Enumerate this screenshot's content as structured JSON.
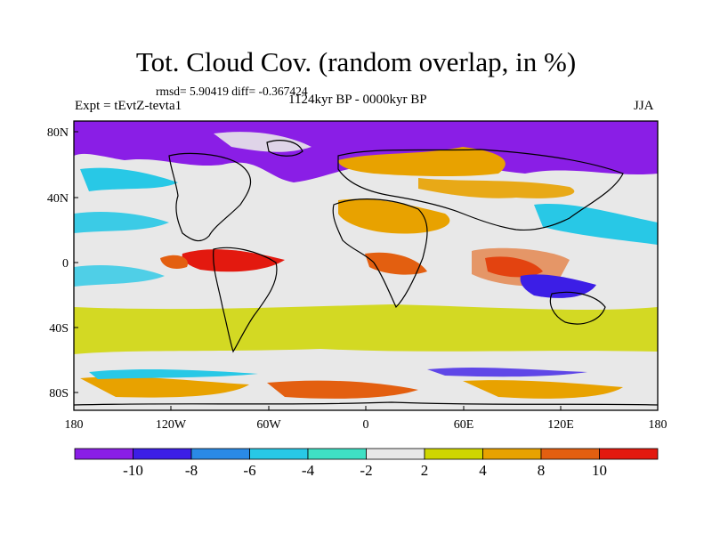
{
  "header": {
    "title": "Tot. Cloud Cov. (random overlap, in %)",
    "stats": "rmsd= 5.90419 diff= -0.367424",
    "experiment": "Expt = tEvtZ-tevta1",
    "period": "1124kyr BP - 0000kyr BP",
    "season": "JJA"
  },
  "axes": {
    "lat_ticks": [
      "80N",
      "40N",
      "0",
      "40S",
      "80S"
    ],
    "lon_ticks": [
      "180",
      "120W",
      "60W",
      "0",
      "60E",
      "120E",
      "180"
    ]
  },
  "colorbar": {
    "labels": [
      "-10",
      "-8",
      "-6",
      "-4",
      "-2",
      "2",
      "4",
      "8",
      "10"
    ],
    "colors": [
      "#8a1ee6",
      "#3c1ee6",
      "#2a8ae6",
      "#28c8e6",
      "#3fe0c4",
      "#e8e8e8",
      "#cfd600",
      "#e8a200",
      "#e35f10",
      "#e3190f"
    ]
  }
}
